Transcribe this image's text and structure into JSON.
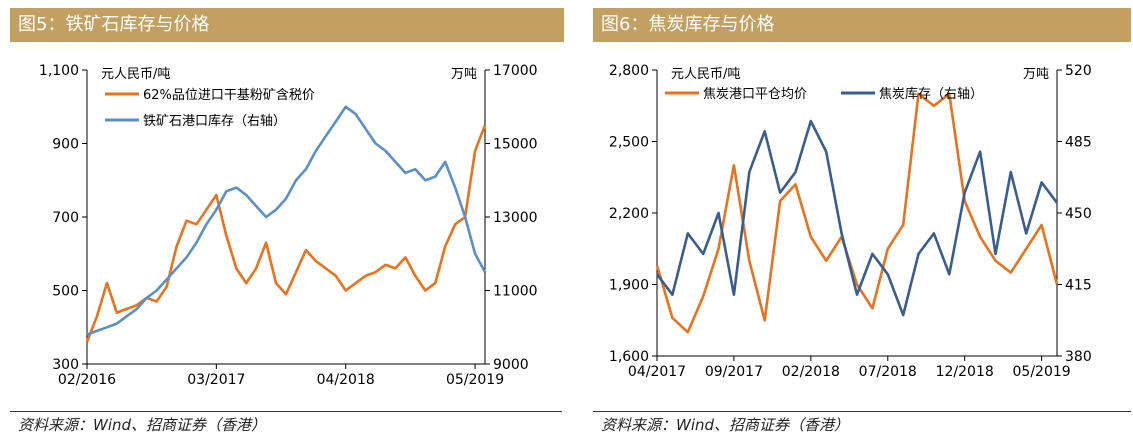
{
  "charts": [
    {
      "figure_title": "图5：铁矿石库存与价格",
      "source": "资料来源：Wind、招商证券（香港）",
      "chart_data": {
        "type": "line",
        "left_unit": "元人民币/吨",
        "right_unit": "万吨",
        "x_ticks": [
          "02/2016",
          "03/2017",
          "04/2018",
          "05/2019"
        ],
        "x_range": [
          "2016-02",
          "2019-06"
        ],
        "left_ylim": [
          300,
          1100
        ],
        "left_yticks": [
          "300",
          "500",
          "700",
          "900",
          "1,100"
        ],
        "right_ylim": [
          9000,
          17000
        ],
        "right_yticks": [
          "9000",
          "11000",
          "13000",
          "15000",
          "17000"
        ],
        "legend_position": "top-left",
        "series": [
          {
            "name": "62%品位进口干基粉矿含税价",
            "axis": "left",
            "color": "#e8731f",
            "x": [
              "2016-02",
              "2016-03",
              "2016-04",
              "2016-05",
              "2016-06",
              "2016-07",
              "2016-08",
              "2016-09",
              "2016-10",
              "2016-11",
              "2016-12",
              "2017-01",
              "2017-02",
              "2017-03",
              "2017-04",
              "2017-05",
              "2017-06",
              "2017-07",
              "2017-08",
              "2017-09",
              "2017-10",
              "2017-11",
              "2017-12",
              "2018-01",
              "2018-02",
              "2018-03",
              "2018-04",
              "2018-05",
              "2018-06",
              "2018-07",
              "2018-08",
              "2018-09",
              "2018-10",
              "2018-11",
              "2018-12",
              "2019-01",
              "2019-02",
              "2019-03",
              "2019-04",
              "2019-05",
              "2019-06"
            ],
            "values": [
              360,
              430,
              520,
              440,
              450,
              460,
              480,
              470,
              510,
              620,
              690,
              680,
              720,
              760,
              650,
              560,
              520,
              560,
              630,
              520,
              490,
              550,
              610,
              580,
              560,
              540,
              500,
              520,
              540,
              550,
              570,
              560,
              590,
              540,
              500,
              520,
              620,
              680,
              700,
              880,
              950
            ]
          },
          {
            "name": "铁矿石港口库存（右轴）",
            "axis": "right",
            "color": "#5b8fc9",
            "x": [
              "2016-02",
              "2016-03",
              "2016-04",
              "2016-05",
              "2016-06",
              "2016-07",
              "2016-08",
              "2016-09",
              "2016-10",
              "2016-11",
              "2016-12",
              "2017-01",
              "2017-02",
              "2017-03",
              "2017-04",
              "2017-05",
              "2017-06",
              "2017-07",
              "2017-08",
              "2017-09",
              "2017-10",
              "2017-11",
              "2017-12",
              "2018-01",
              "2018-02",
              "2018-03",
              "2018-04",
              "2018-05",
              "2018-06",
              "2018-07",
              "2018-08",
              "2018-09",
              "2018-10",
              "2018-11",
              "2018-12",
              "2019-01",
              "2019-02",
              "2019-03",
              "2019-04",
              "2019-05",
              "2019-06"
            ],
            "values": [
              9800,
              9900,
              10000,
              10100,
              10300,
              10500,
              10800,
              11000,
              11300,
              11600,
              11900,
              12300,
              12800,
              13200,
              13700,
              13800,
              13600,
              13300,
              13000,
              13200,
              13500,
              14000,
              14300,
              14800,
              15200,
              15600,
              16000,
              15800,
              15400,
              15000,
              14800,
              14500,
              14200,
              14300,
              14000,
              14100,
              14500,
              13800,
              13000,
              12000,
              11500
            ]
          }
        ]
      }
    },
    {
      "figure_title": "图6：焦炭库存与价格",
      "source": "资料来源：Wind、招商证券（香港）",
      "chart_data": {
        "type": "line",
        "left_unit": "元人民币/吨",
        "right_unit": "万吨",
        "x_ticks": [
          "04/2017",
          "09/2017",
          "02/2018",
          "07/2018",
          "12/2018",
          "05/2019"
        ],
        "x_range": [
          "2017-04",
          "2019-06"
        ],
        "left_ylim": [
          1600,
          2800
        ],
        "left_yticks": [
          "1,600",
          "1,900",
          "2,200",
          "2,500",
          "2,800"
        ],
        "right_ylim": [
          380,
          520
        ],
        "right_yticks": [
          "380",
          "415",
          "450",
          "485",
          "520"
        ],
        "legend_position": "top",
        "series": [
          {
            "name": "焦炭港口平仓均价",
            "axis": "left",
            "color": "#e8731f",
            "x": [
              "2017-04",
              "2017-05",
              "2017-06",
              "2017-07",
              "2017-08",
              "2017-09",
              "2017-10",
              "2017-11",
              "2017-12",
              "2018-01",
              "2018-02",
              "2018-03",
              "2018-04",
              "2018-05",
              "2018-06",
              "2018-07",
              "2018-08",
              "2018-09",
              "2018-10",
              "2018-11",
              "2018-12",
              "2019-01",
              "2019-02",
              "2019-03",
              "2019-04",
              "2019-05",
              "2019-06"
            ],
            "values": [
              1980,
              1760,
              1700,
              1850,
              2050,
              2400,
              2000,
              1750,
              2250,
              2320,
              2100,
              2000,
              2100,
              1900,
              1800,
              2050,
              2150,
              2700,
              2650,
              2700,
              2250,
              2100,
              2000,
              1950,
              2050,
              2150,
              1900
            ]
          },
          {
            "name": "焦炭库存（右轴）",
            "axis": "right",
            "color": "#3a5d8f",
            "x": [
              "2017-04",
              "2017-05",
              "2017-06",
              "2017-07",
              "2017-08",
              "2017-09",
              "2017-10",
              "2017-11",
              "2017-12",
              "2018-01",
              "2018-02",
              "2018-03",
              "2018-04",
              "2018-05",
              "2018-06",
              "2018-07",
              "2018-08",
              "2018-09",
              "2018-10",
              "2018-11",
              "2018-12",
              "2019-01",
              "2019-02",
              "2019-03",
              "2019-04",
              "2019-05",
              "2019-06"
            ],
            "values": [
              420,
              410,
              440,
              430,
              450,
              410,
              470,
              490,
              460,
              470,
              495,
              480,
              440,
              410,
              430,
              420,
              400,
              430,
              440,
              420,
              460,
              480,
              430,
              470,
              440,
              465,
              455
            ]
          }
        ]
      }
    }
  ]
}
